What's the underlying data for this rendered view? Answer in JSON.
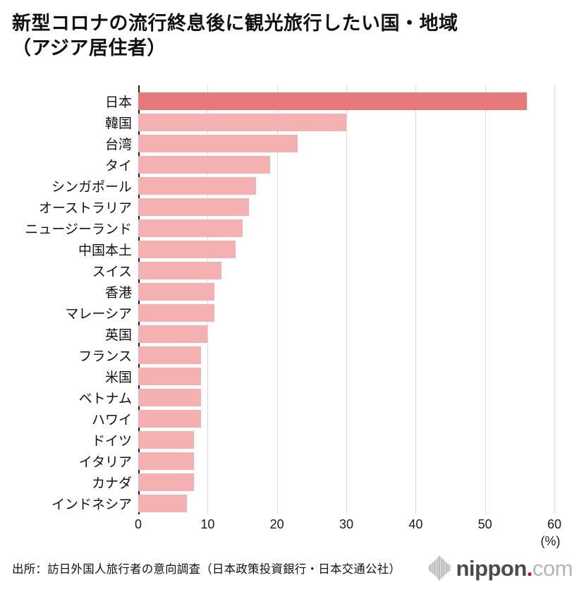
{
  "title": {
    "line1": "新型コロナの流行終息後に観光旅行したい国・地域",
    "line2": "（アジア居住者）"
  },
  "chart_data": {
    "type": "bar",
    "orientation": "horizontal",
    "title": "新型コロナの流行終息後に観光旅行したい国・地域（アジア居住者）",
    "categories": [
      "日本",
      "韓国",
      "台湾",
      "タイ",
      "シンガポール",
      "オーストラリア",
      "ニュージーランド",
      "中国本土",
      "スイス",
      "香港",
      "マレーシア",
      "英国",
      "フランス",
      "米国",
      "ベトナム",
      "ハワイ",
      "ドイツ",
      "イタリア",
      "カナダ",
      "インドネシア"
    ],
    "values": [
      56,
      30,
      23,
      19,
      17,
      16,
      15,
      14,
      12,
      11,
      11,
      10,
      9,
      9,
      9,
      9,
      8,
      8,
      8,
      7
    ],
    "xlim": [
      0,
      60
    ],
    "xticks": [
      0,
      10,
      20,
      30,
      40,
      50,
      60
    ],
    "unit_label": "(%)",
    "grid": "vertical-only",
    "highlight_index": 0,
    "colors": {
      "highlight_bar": "#e8797b",
      "normal_bar": "#f5b1b1",
      "gridline": "#d9d9d9",
      "axis": "#1a1a1a"
    }
  },
  "footer": {
    "source": "出所：訪日外国人旅行者の意向調査（日本政策投資銀行・日本交通公社）",
    "logo": {
      "name": "nippon",
      "dot": ".",
      "tld": "com"
    }
  }
}
